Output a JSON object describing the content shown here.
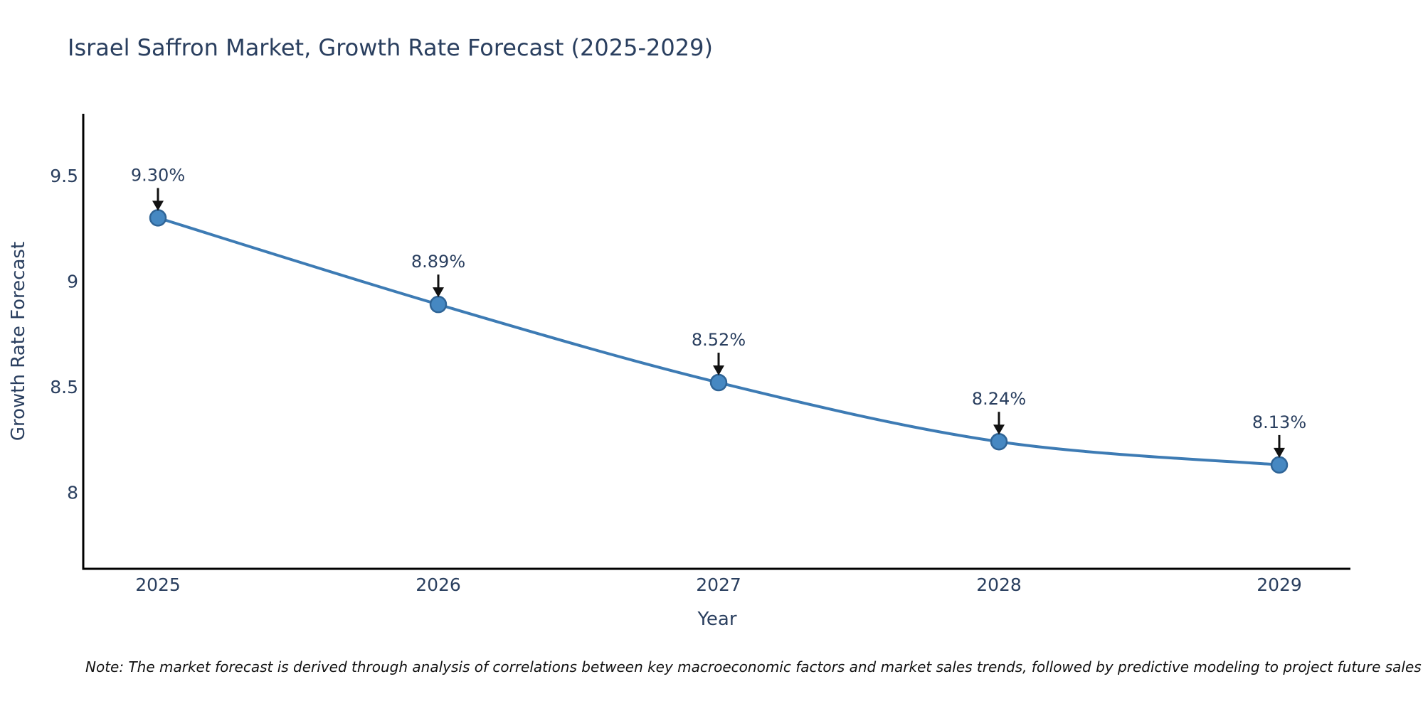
{
  "title": "Israel Saffron Market, Growth Rate Forecast (2025-2029)",
  "note": "Note: The market forecast is derived through analysis of correlations between key macroeconomic factors and market sales trends, followed by predictive modeling to project future sales",
  "chart_data": {
    "type": "line",
    "title": "Israel Saffron Market, Growth Rate Forecast (2025-2029)",
    "xlabel": "Year",
    "ylabel": "Growth Rate Forecast",
    "categories": [
      "2025",
      "2026",
      "2027",
      "2028",
      "2029"
    ],
    "series": [
      {
        "name": "Growth Rate Forecast",
        "values": [
          9.3,
          8.89,
          8.52,
          8.24,
          8.13
        ],
        "point_labels": [
          "9.30%",
          "8.89%",
          "8.52%",
          "8.24%",
          "8.13%"
        ]
      }
    ],
    "yticks": [
      9.5,
      9,
      8.5,
      8
    ],
    "ytick_labels": [
      "9.5",
      "9",
      "8.5",
      "8"
    ],
    "ylim": [
      7.64,
      9.79
    ],
    "grid": false,
    "legend": "none",
    "line_shape": "spline",
    "point_annotations": "arrow-down-to-marker",
    "colors": {
      "line": "#3d7bb4",
      "marker_fill": "#4688c2",
      "marker_edge": "#2f6496",
      "axis": "#000000",
      "text": "#2a3f5f",
      "annotation_arrow": "#111111"
    }
  }
}
